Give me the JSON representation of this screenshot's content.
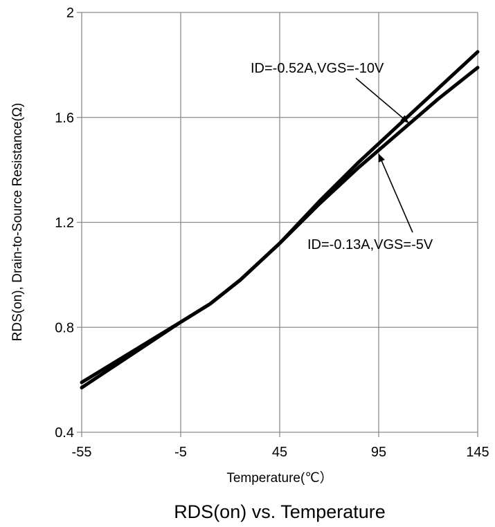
{
  "chart_data": {
    "type": "line",
    "title": "RDS(on) vs. Temperature",
    "xlabel": "Temperature(℃）",
    "ylabel": "RDS(on), Drain-to-Source Resistance(Ω)",
    "xlim": [
      -55,
      145
    ],
    "ylim": [
      0.4,
      2.0
    ],
    "xticks": [
      -55,
      -5,
      45,
      95,
      145
    ],
    "xtick_labels": [
      "-55",
      "-5",
      "45",
      "95",
      "145"
    ],
    "yticks": [
      0.4,
      0.8,
      1.2,
      1.6,
      2.0
    ],
    "ytick_labels": [
      "0.4",
      "0.8",
      "1.2",
      "1.6",
      "2"
    ],
    "grid": true,
    "legend": "none",
    "series": [
      {
        "x": [
          -55,
          -5,
          10,
          25,
          45,
          65,
          85,
          105,
          125,
          145
        ],
        "y": [
          0.59,
          0.82,
          0.89,
          0.98,
          1.12,
          1.28,
          1.43,
          1.57,
          1.71,
          1.85
        ]
      },
      {
        "x": [
          -55,
          -5,
          10,
          25,
          45,
          65,
          85,
          105,
          125,
          145
        ],
        "y": [
          0.57,
          0.82,
          0.89,
          0.98,
          1.12,
          1.27,
          1.41,
          1.54,
          1.67,
          1.79
        ]
      }
    ],
    "annotations": [
      {
        "text": "ID=-0.52A,VGS=-10V",
        "target": {
          "x": 110,
          "y": 1.58
        }
      },
      {
        "text": "ID=-0.13A,VGS=-5V",
        "target": {
          "x": 95,
          "y": 1.46
        }
      }
    ]
  }
}
